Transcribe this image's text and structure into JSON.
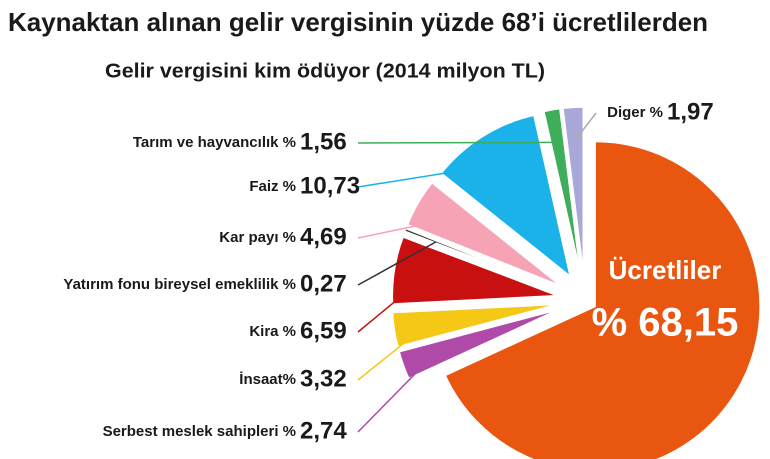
{
  "chart_data": {
    "type": "pie",
    "title": "Kaynaktan alınan gelir vergisinin yüzde 68’i ücretlilerden",
    "subtitle": "Gelir vergisini kim ödüyor (2014 milyon TL)",
    "categories": [
      "Ücretliler",
      "Serbest meslek sahipleri %",
      "İnsaat%",
      "Kira %",
      "Yatırım fonu bireysel emeklilik %",
      "Kar payı %",
      "Faiz %",
      "Tarım ve hayvancılık %",
      "Diger %"
    ],
    "values": [
      68.15,
      2.74,
      3.32,
      6.59,
      0.27,
      4.69,
      10.73,
      1.56,
      1.97
    ],
    "value_labels": [
      "% 68,15",
      "2,74",
      "3,32",
      "6,59",
      "0,27",
      "4,69",
      "10,73",
      "1,56",
      "1,97"
    ],
    "colors": [
      "#e8560f",
      "#b04aa8",
      "#f5c816",
      "#c81010",
      "#333333",
      "#f5a3b5",
      "#1ab2e8",
      "#3fae5a",
      "#a9a9d9"
    ]
  }
}
